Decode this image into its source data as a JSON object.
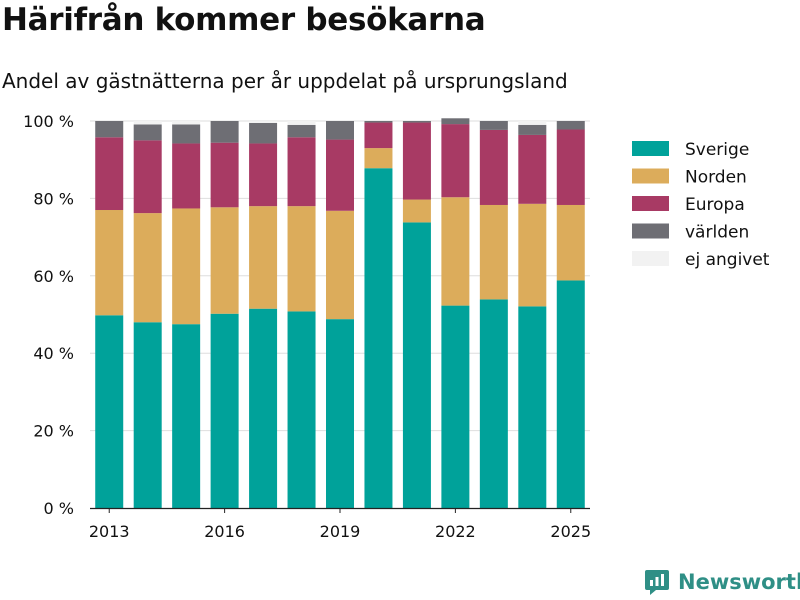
{
  "title": "Härifrån kommer besökarna",
  "subtitle": "Andel av gästnätterna per år uppdelat på ursprungsland",
  "brand": "Newsworthy",
  "chart_data": {
    "type": "bar",
    "stacked": true,
    "categories": [
      2013,
      2014,
      2015,
      2016,
      2017,
      2018,
      2019,
      2020,
      2021,
      2022,
      2023,
      2024,
      2025
    ],
    "series": [
      {
        "name": "Sverige",
        "color": "#00a29a",
        "values": [
          49.8,
          48.0,
          47.5,
          50.2,
          51.5,
          50.8,
          48.8,
          87.8,
          73.8,
          52.3,
          53.9,
          52.1,
          58.8
        ]
      },
      {
        "name": "Norden",
        "color": "#dcac5b",
        "values": [
          27.2,
          28.2,
          29.9,
          27.5,
          26.5,
          27.2,
          28.0,
          5.2,
          5.9,
          28.0,
          24.4,
          26.5,
          19.5
        ]
      },
      {
        "name": "Europa",
        "color": "#a83a64",
        "values": [
          18.8,
          18.8,
          16.8,
          16.7,
          16.2,
          17.8,
          18.4,
          6.6,
          19.9,
          18.9,
          19.4,
          17.8,
          19.5
        ]
      },
      {
        "name": "världen",
        "color": "#6e6e74",
        "values": [
          4.2,
          4.1,
          4.9,
          5.6,
          5.3,
          3.2,
          4.8,
          0.4,
          0.4,
          1.5,
          2.3,
          2.6,
          2.2
        ]
      },
      {
        "name": "ej angivet",
        "color": "#f2f2f2",
        "values": [
          0.0,
          0.9,
          0.9,
          0.0,
          0.5,
          1.0,
          0.0,
          0.0,
          0.0,
          0.0,
          0.0,
          1.0,
          0.0
        ]
      }
    ],
    "xticks": [
      "2013",
      "2016",
      "2019",
      "2022",
      "2025"
    ],
    "yticks": [
      "0 %",
      "20 %",
      "40 %",
      "60 %",
      "80 %",
      "100 %"
    ],
    "ylim": [
      0,
      100
    ],
    "xlabel": "",
    "ylabel": "",
    "grid": true,
    "legend_position": "right"
  }
}
